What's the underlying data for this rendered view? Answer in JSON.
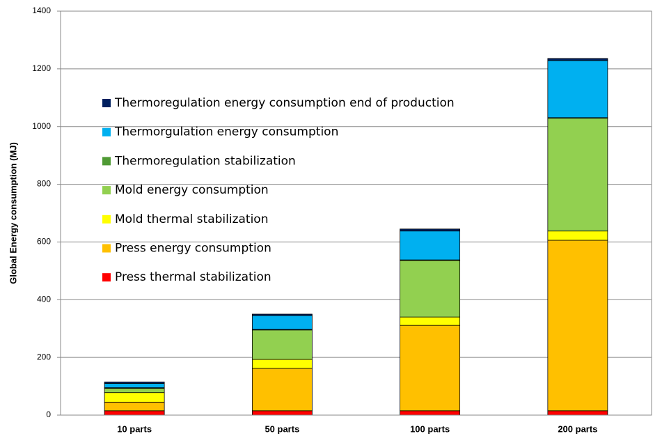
{
  "chart_data": {
    "type": "stacked_bar",
    "ylabel": "Global Energy consumption (MJ)",
    "categories": [
      "10 parts",
      "50 parts",
      "100 parts",
      "200 parts"
    ],
    "series": [
      {
        "name": "Press thermal stabilization",
        "color": "#ff0000",
        "values": [
          15,
          15,
          15,
          15
        ]
      },
      {
        "name": "Press energy consumption",
        "color": "#ffc000",
        "values": [
          30,
          147,
          296,
          591
        ]
      },
      {
        "name": "Mold thermal stabilization",
        "color": "#ffff00",
        "values": [
          33,
          31,
          29,
          32
        ]
      },
      {
        "name": "Mold energy consumption",
        "color": "#92d050",
        "values": [
          15,
          102,
          196,
          391
        ]
      },
      {
        "name": "Thermoregulation stabilization",
        "color": "#4f9a34",
        "values": [
          2,
          2,
          2,
          2
        ]
      },
      {
        "name": "Thermorgulation energy consumption",
        "color": "#00b0f0",
        "values": [
          15,
          48,
          100,
          198
        ]
      },
      {
        "name": "Thermoregulation energy consumption end of production",
        "color": "#002060",
        "values": [
          5,
          5,
          7,
          7
        ]
      }
    ],
    "ylim": [
      0,
      1400
    ],
    "yticks": [
      0,
      200,
      400,
      600,
      800,
      1000,
      1200,
      1400
    ],
    "grid": true,
    "legend": "upper left"
  }
}
